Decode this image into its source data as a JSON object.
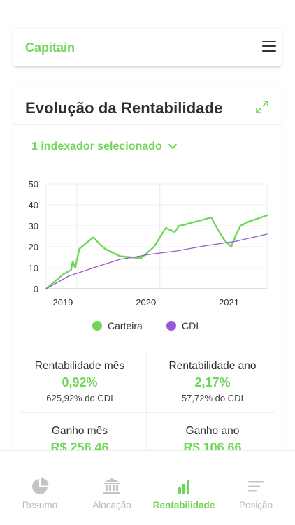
{
  "header": {
    "brand": "Capitain",
    "menu_icon": "menu-icon"
  },
  "card": {
    "title": "Evolução da Rentabilidade",
    "expand_icon": "expand-icon",
    "selector_label": "1 indexador selecionado"
  },
  "chart_data": {
    "type": "line",
    "x_ticks": [
      "2019",
      "2020",
      "2021"
    ],
    "y_ticks": [
      "0",
      "10",
      "20",
      "30",
      "40",
      "50"
    ],
    "ylim": [
      0,
      50
    ],
    "series": [
      {
        "name": "Carteira",
        "color": "#6fd65a",
        "x": [
          2018.63,
          2018.75,
          2018.84,
          2018.93,
          2018.95,
          2018.98,
          2019.03,
          2019.12,
          2019.2,
          2019.28,
          2019.34,
          2019.52,
          2019.77,
          2019.93,
          2020.07,
          2020.18,
          2020.23,
          2020.29,
          2020.62,
          2020.7,
          2020.78,
          2020.86,
          2020.92,
          2020.97,
          2021.07,
          2021.29
        ],
        "values": [
          0,
          4,
          7,
          9,
          13,
          10,
          19,
          22,
          24.5,
          21,
          19,
          15.5,
          14.5,
          20,
          29,
          27,
          30,
          30.5,
          34,
          28,
          23,
          20,
          26,
          30,
          32,
          35
        ]
      },
      {
        "name": "CDI",
        "color": "#9a58d6",
        "x": [
          2018.63,
          2018.9,
          2019.2,
          2019.52,
          2019.9,
          2020.2,
          2020.55,
          2020.9,
          2021.29
        ],
        "values": [
          0,
          6,
          10,
          14,
          16.5,
          18,
          20.5,
          22.5,
          26
        ]
      }
    ],
    "legend_position": "bottom",
    "grid": true
  },
  "stats": [
    {
      "label": "Rentabilidade mês",
      "value": "0,92%",
      "sub": "625,92% do CDI"
    },
    {
      "label": "Rentabilidade ano",
      "value": "2,17%",
      "sub": "57,72% do CDI"
    },
    {
      "label": "Ganho mês",
      "value": "R$ 256,46",
      "sub": ""
    },
    {
      "label": "Ganho ano",
      "value": "R$ 106,66",
      "sub": ""
    }
  ],
  "nav": [
    {
      "label": "Resumo",
      "icon": "pie-chart-icon",
      "active": false
    },
    {
      "label": "Alocação",
      "icon": "bank-icon",
      "active": false
    },
    {
      "label": "Rentabilidade",
      "icon": "bar-chart-icon",
      "active": true
    },
    {
      "label": "Posição",
      "icon": "list-icon",
      "active": false
    }
  ],
  "colors": {
    "accent": "#6fd65a",
    "cdi": "#9a58d6",
    "inactive": "#b8b8b8"
  }
}
